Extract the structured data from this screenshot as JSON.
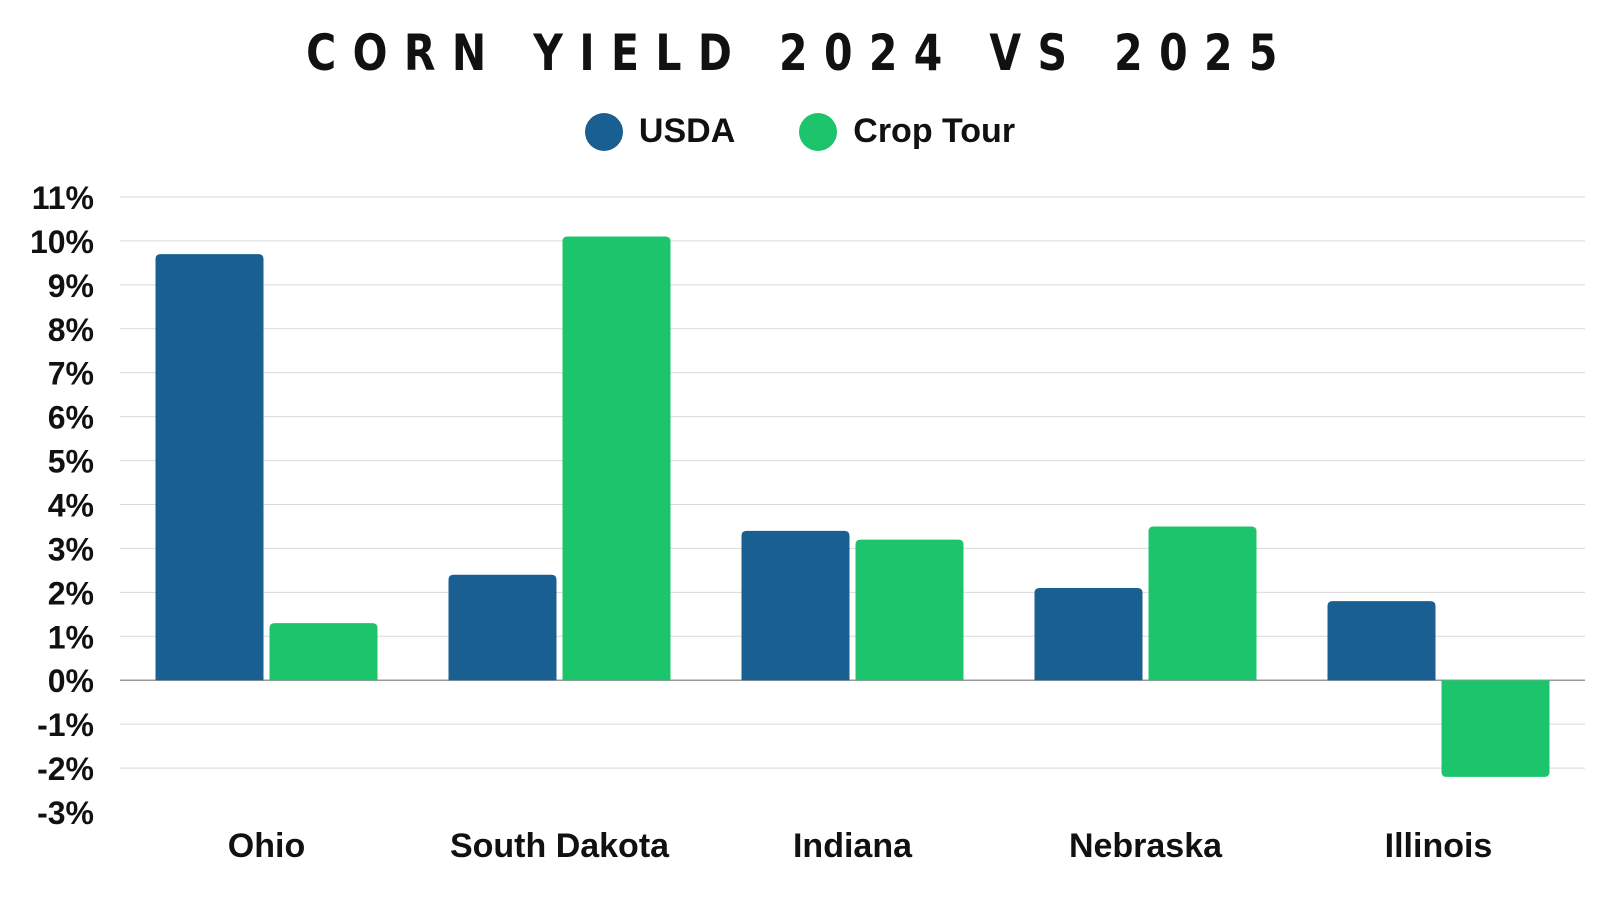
{
  "chart_data": {
    "type": "bar",
    "title": "CORN YIELD 2024 VS 2025",
    "categories": [
      "Ohio",
      "South Dakota",
      "Indiana",
      "Nebraska",
      "Illinois"
    ],
    "series": [
      {
        "name": "USDA",
        "color": "#1a5f91",
        "values": [
          9.7,
          2.4,
          3.4,
          2.1,
          1.8
        ]
      },
      {
        "name": "Crop Tour",
        "color": "#1cc46b",
        "values": [
          1.3,
          10.1,
          3.2,
          3.5,
          -2.2
        ]
      }
    ],
    "y_ticks": [
      11,
      10,
      9,
      8,
      7,
      6,
      5,
      4,
      3,
      2,
      1,
      0,
      -1,
      -2,
      -3
    ],
    "y_tick_labels": [
      "11%",
      "10%",
      "9%",
      "8%",
      "7%",
      "6%",
      "5%",
      "4%",
      "3%",
      "2%",
      "1%",
      "0%",
      "-1%",
      "-2%",
      "-3%"
    ],
    "ylim": [
      -3,
      11
    ],
    "xlabel": "",
    "ylabel": "",
    "legend": "top-center",
    "grid": true
  }
}
